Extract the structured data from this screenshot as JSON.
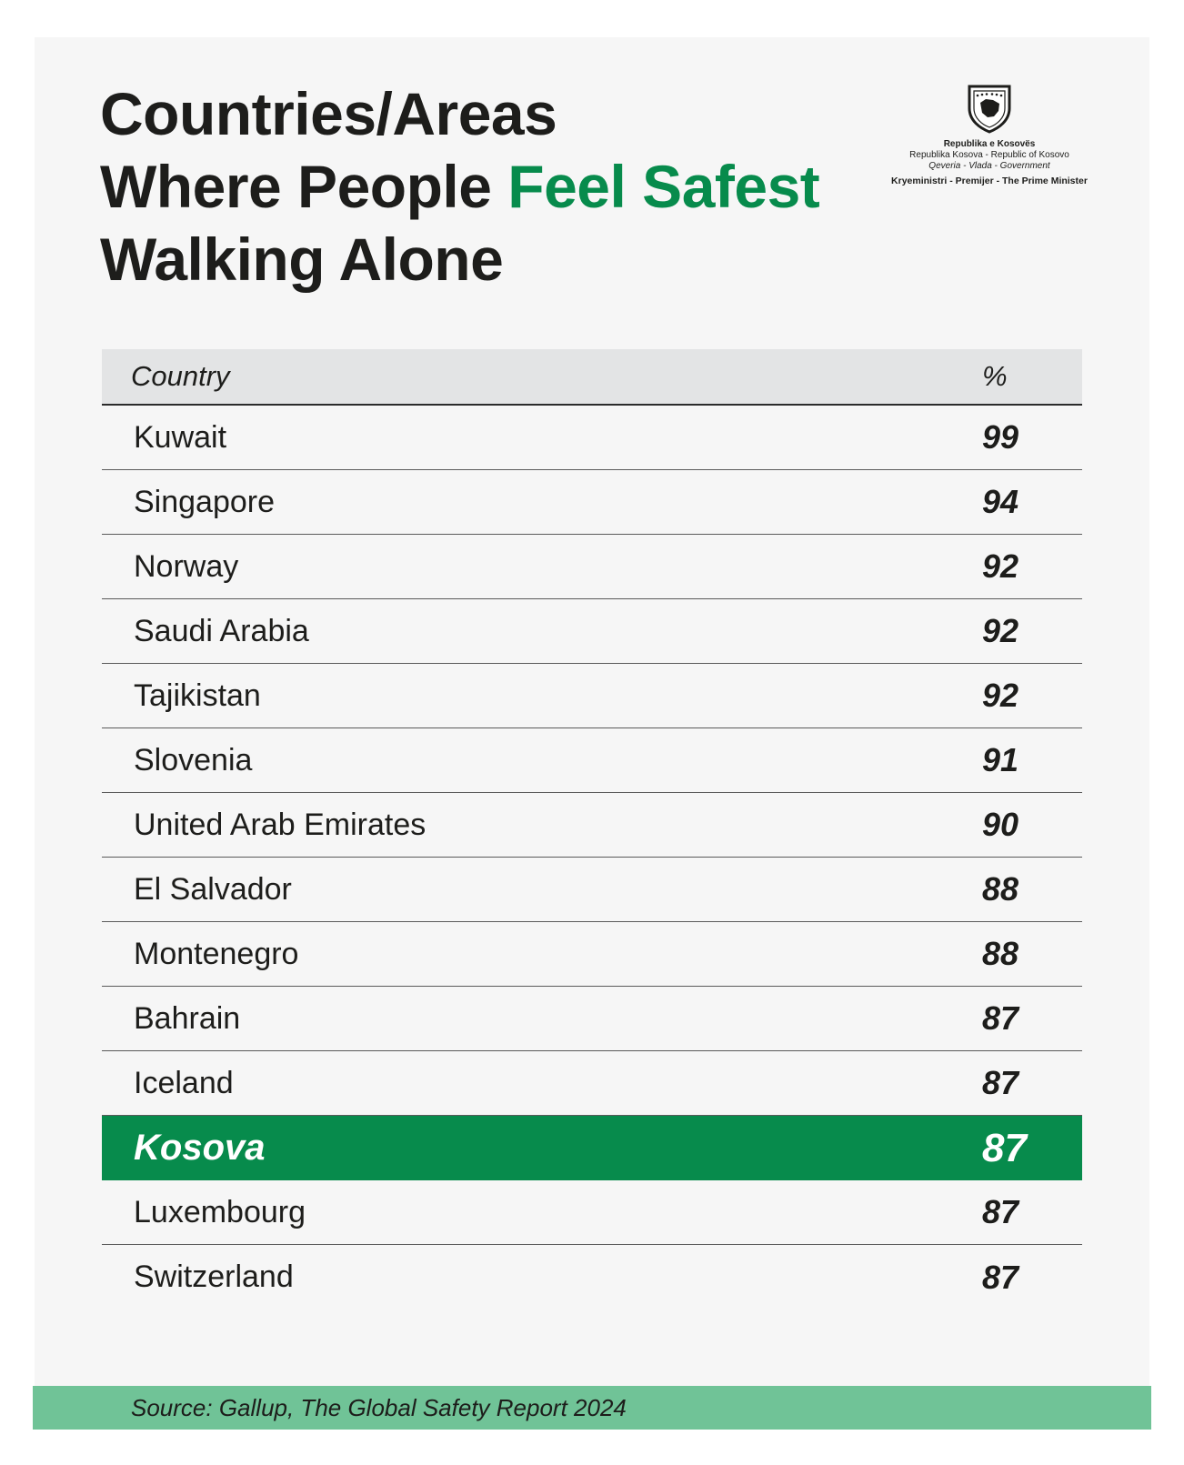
{
  "title": {
    "line1": "Countries/Areas",
    "line2_prefix": "Where People ",
    "line2_accent": "Feel Safest",
    "line3": "Walking Alone"
  },
  "emblem": {
    "icon": "kosovo-coat-of-arms-icon",
    "line1": "Republika e Kosovës",
    "line2": "Republika Kosova - Republic of Kosovo",
    "line3": "Qeveria - Vlada - Government",
    "line4": "Kryeministri - Premijer - The Prime Minister"
  },
  "colors": {
    "accent": "#078b4c",
    "source_bar": "#70c397",
    "header_bg": "#e3e4e5",
    "card_bg": "#f6f6f6"
  },
  "chart_data": {
    "type": "table",
    "columns": [
      "Country",
      "%"
    ],
    "rows": [
      {
        "country": "Kuwait",
        "value": "99"
      },
      {
        "country": "Singapore",
        "value": "94"
      },
      {
        "country": "Norway",
        "value": "92"
      },
      {
        "country": "Saudi Arabia",
        "value": "92"
      },
      {
        "country": "Tajikistan",
        "value": "92"
      },
      {
        "country": "Slovenia",
        "value": "91"
      },
      {
        "country": "United Arab Emirates",
        "value": "90"
      },
      {
        "country": "El Salvador",
        "value": "88"
      },
      {
        "country": "Montenegro",
        "value": "88"
      },
      {
        "country": "Bahrain",
        "value": "87"
      },
      {
        "country": "Iceland",
        "value": "87"
      },
      {
        "country": "Kosova",
        "value": "87",
        "highlight": true
      },
      {
        "country": "Luxembourg",
        "value": "87"
      },
      {
        "country": "Switzerland",
        "value": "87"
      }
    ]
  },
  "source": "Source: Gallup, The Global Safety Report 2024"
}
